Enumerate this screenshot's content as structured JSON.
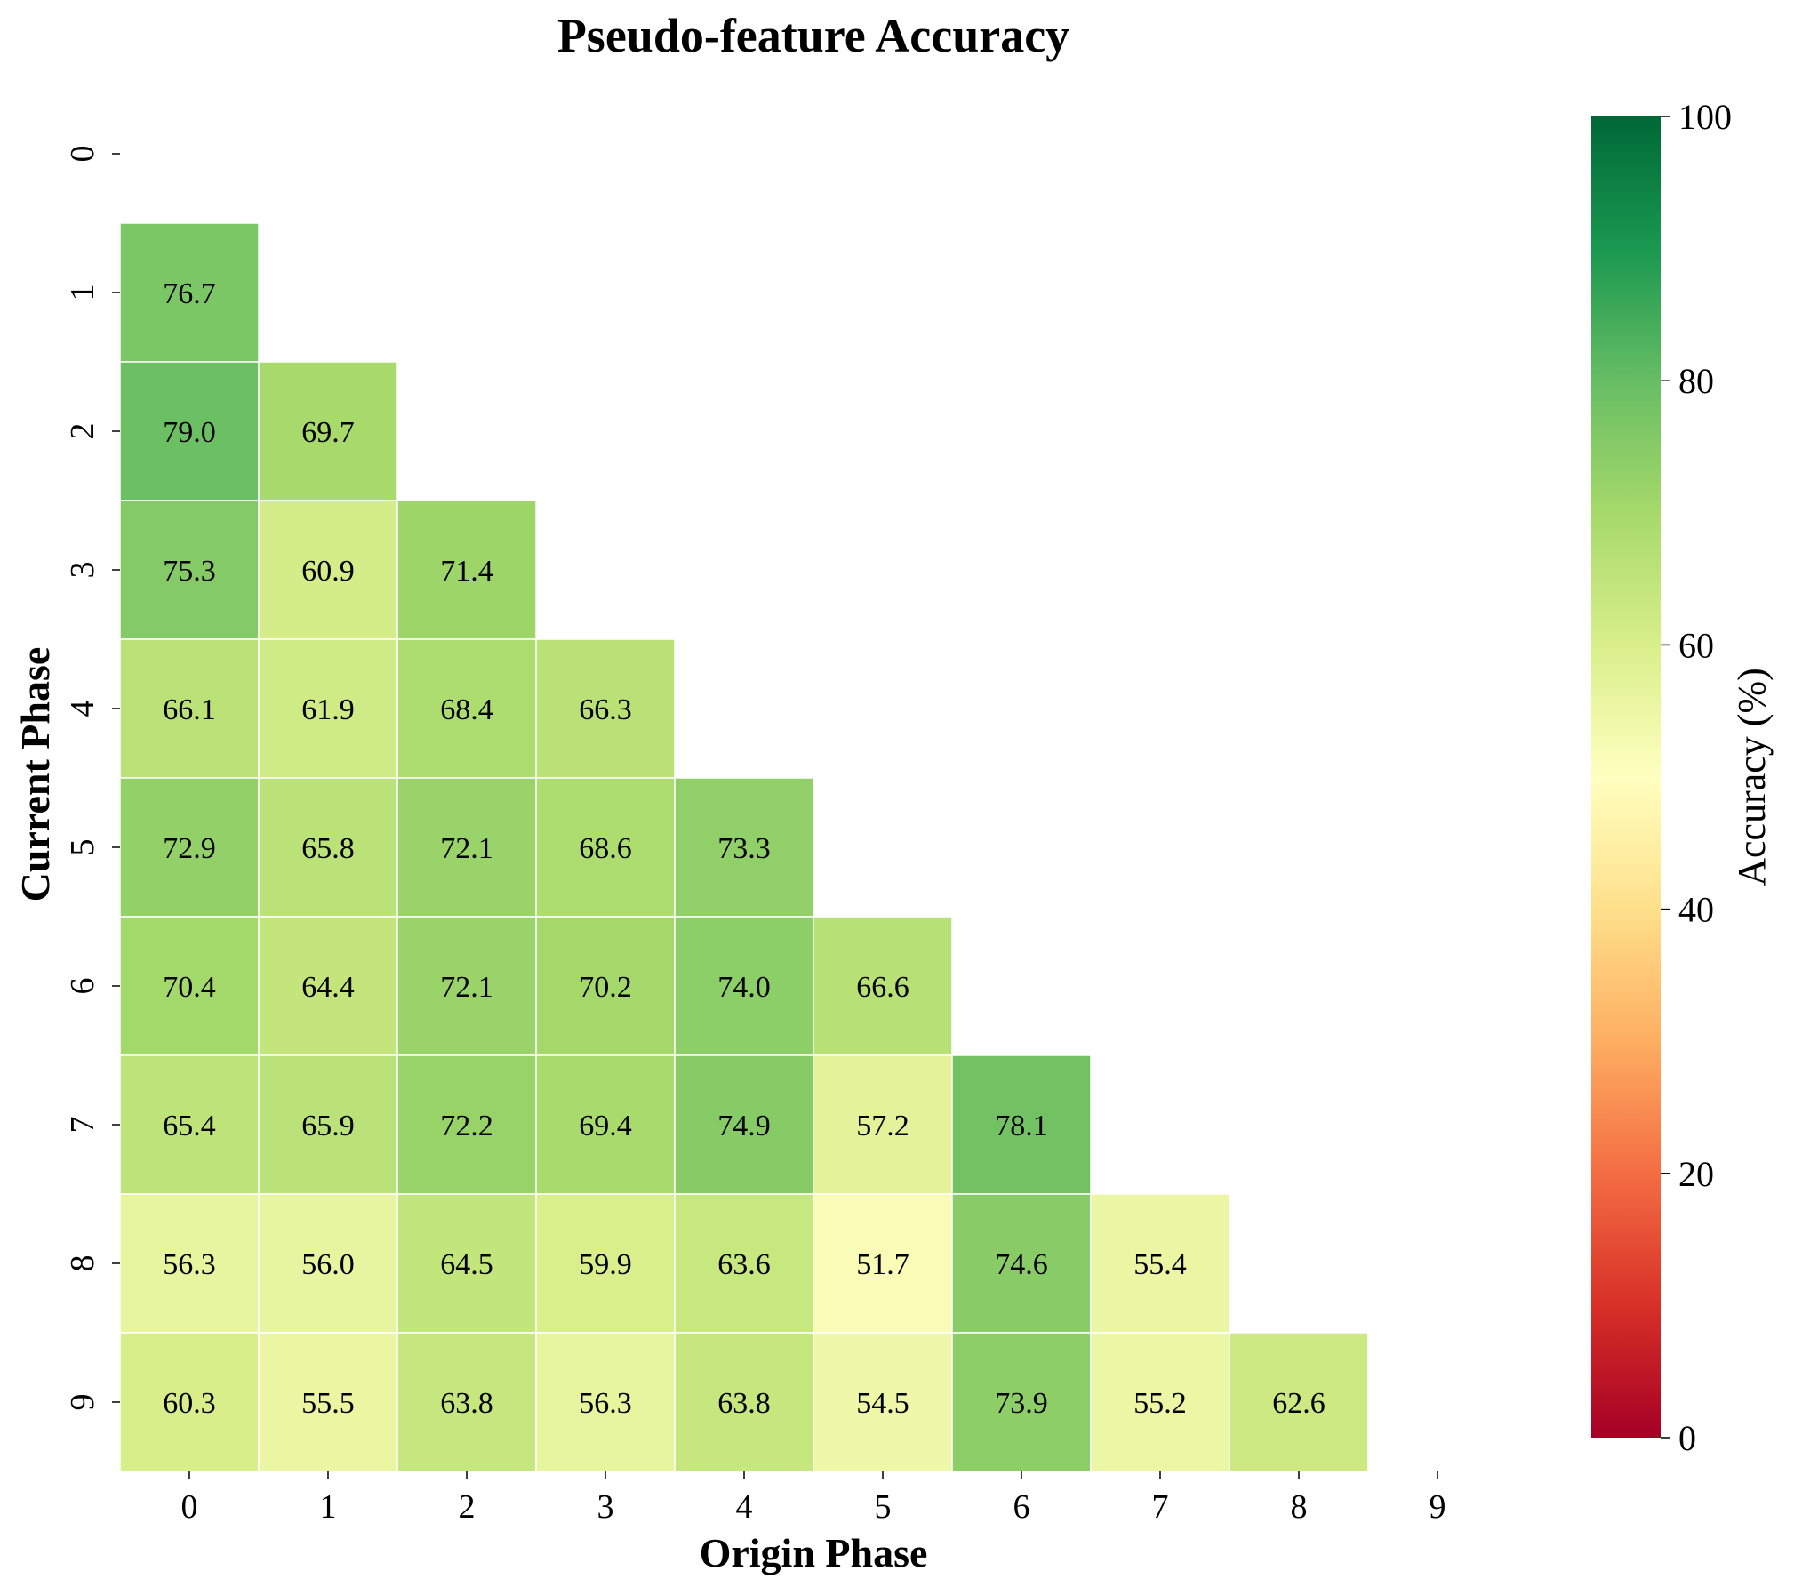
{
  "chart_data": {
    "type": "heatmap",
    "title": "Pseudo-feature Accuracy",
    "xlabel": "Origin Phase",
    "ylabel": "Current Phase",
    "x_categories": [
      "0",
      "1",
      "2",
      "3",
      "4",
      "5",
      "6",
      "7",
      "8",
      "9"
    ],
    "y_categories": [
      "0",
      "1",
      "2",
      "3",
      "4",
      "5",
      "6",
      "7",
      "8",
      "9"
    ],
    "values": [
      [
        null,
        null,
        null,
        null,
        null,
        null,
        null,
        null,
        null,
        null
      ],
      [
        76.7,
        null,
        null,
        null,
        null,
        null,
        null,
        null,
        null,
        null
      ],
      [
        79.0,
        69.7,
        null,
        null,
        null,
        null,
        null,
        null,
        null,
        null
      ],
      [
        75.3,
        60.9,
        71.4,
        null,
        null,
        null,
        null,
        null,
        null,
        null
      ],
      [
        66.1,
        61.9,
        68.4,
        66.3,
        null,
        null,
        null,
        null,
        null,
        null
      ],
      [
        72.9,
        65.8,
        72.1,
        68.6,
        73.3,
        null,
        null,
        null,
        null,
        null
      ],
      [
        70.4,
        64.4,
        72.1,
        70.2,
        74.0,
        66.6,
        null,
        null,
        null,
        null
      ],
      [
        65.4,
        65.9,
        72.2,
        69.4,
        74.9,
        57.2,
        78.1,
        null,
        null,
        null
      ],
      [
        56.3,
        56.0,
        64.5,
        59.9,
        63.6,
        51.7,
        74.6,
        55.4,
        null,
        null
      ],
      [
        60.3,
        55.5,
        63.8,
        56.3,
        63.8,
        54.5,
        73.9,
        55.2,
        62.6,
        null
      ]
    ],
    "colorbar": {
      "label": "Accuracy (%)",
      "range": [
        0,
        100
      ],
      "ticks": [
        "0",
        "20",
        "40",
        "60",
        "80",
        "100"
      ],
      "colormap": "RdYlGn",
      "stops": [
        "#a50026",
        "#d73027",
        "#f46d43",
        "#fdae61",
        "#fee08b",
        "#ffffbf",
        "#d9ef8b",
        "#a6d96a",
        "#66bd63",
        "#1a9850",
        "#006837"
      ]
    },
    "value_format": "one decimal",
    "grid": false
  }
}
